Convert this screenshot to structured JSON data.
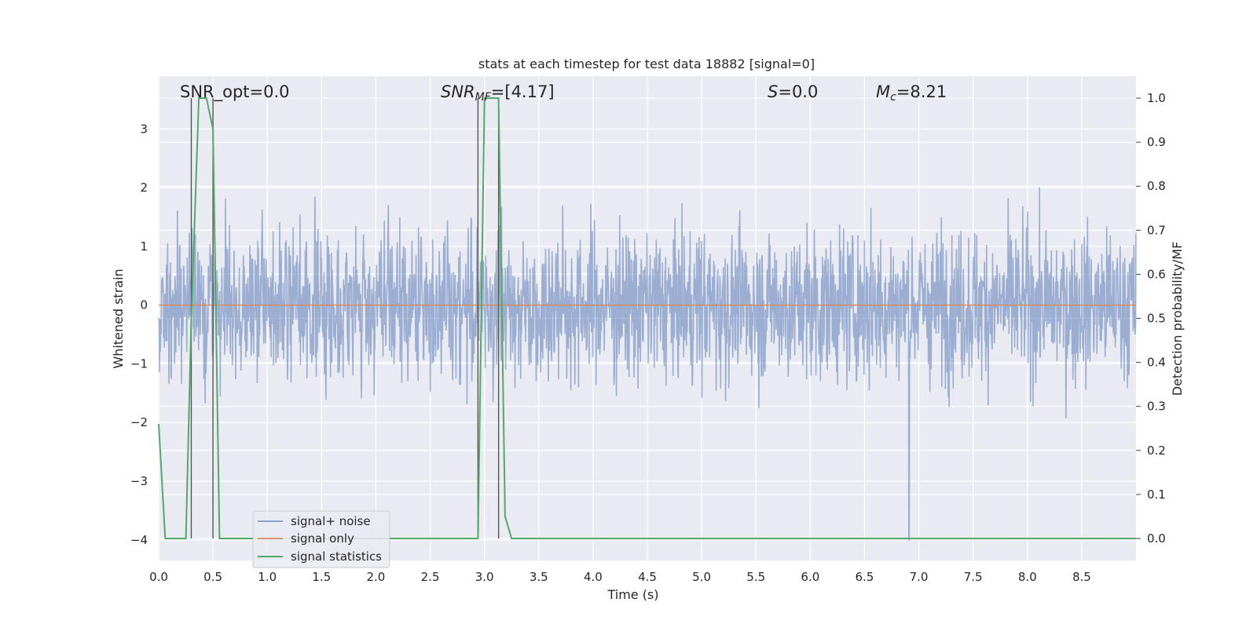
{
  "chart_data": {
    "type": "line",
    "title": "stats at each timestep for test data 18882 [signal=0]",
    "xlabel": "Time (s)",
    "ylabel": "Whitened strain",
    "ylabel_right": "Detection probability/MF",
    "xlim": [
      0.0,
      9.0
    ],
    "ylim": [
      -4.35,
      3.9
    ],
    "ylim_right": [
      -0.05,
      1.05
    ],
    "x_ticks": [
      "0.0",
      "0.5",
      "1.0",
      "1.5",
      "2.0",
      "2.5",
      "3.0",
      "3.5",
      "4.0",
      "4.5",
      "5.0",
      "5.5",
      "6.0",
      "6.5",
      "7.0",
      "7.5",
      "8.0",
      "8.5"
    ],
    "y_ticks": [
      "−4",
      "−3",
      "−2",
      "−1",
      "0",
      "1",
      "2",
      "3"
    ],
    "y_ticks_right": [
      "0.0",
      "0.1",
      "0.2",
      "0.3",
      "0.4",
      "0.5",
      "0.6",
      "0.7",
      "0.8",
      "0.9",
      "1.0"
    ],
    "grid": true,
    "legend_position": "lower-left",
    "annotations": {
      "snr_opt": "SNR_opt=0.0",
      "snr_mf_main": "SNR",
      "snr_mf_sub": "MF",
      "snr_mf_value": "=[4.17]",
      "s_main": "S",
      "s_value": "=0.0",
      "mc_main": "M",
      "mc_sub": "c",
      "mc_value": "=8.21"
    },
    "series": [
      {
        "name": "signal+ noise",
        "color": "#4c72b0",
        "axis": "left",
        "description_values": "whitened noise, roughly between -3.2 and 3.5 with one dip to -4.0 near t=6.9",
        "x_range": [
          0.0,
          9.0
        ],
        "typical_range": [
          -1.8,
          1.8
        ]
      },
      {
        "name": "signal only",
        "color": "#dd8452",
        "axis": "left",
        "x": [
          0.0,
          9.0
        ],
        "y": [
          0.0,
          0.0
        ]
      },
      {
        "name": "signal statistics",
        "color": "#55a868",
        "axis": "right",
        "x": [
          0.0,
          0.06,
          0.25,
          0.3,
          0.37,
          0.44,
          0.5,
          0.56,
          0.62,
          2.94,
          3.0,
          3.07,
          3.13,
          3.19,
          3.25,
          8.75,
          9.0
        ],
        "y": [
          0.26,
          0.0,
          0.0,
          0.5,
          1.0,
          1.0,
          0.93,
          0.0,
          0.0,
          0.0,
          1.0,
          1.0,
          1.0,
          0.05,
          0.0,
          0.0,
          0.0
        ]
      }
    ],
    "detection_markers_x": [
      0.3,
      0.5,
      2.94,
      3.13
    ]
  }
}
